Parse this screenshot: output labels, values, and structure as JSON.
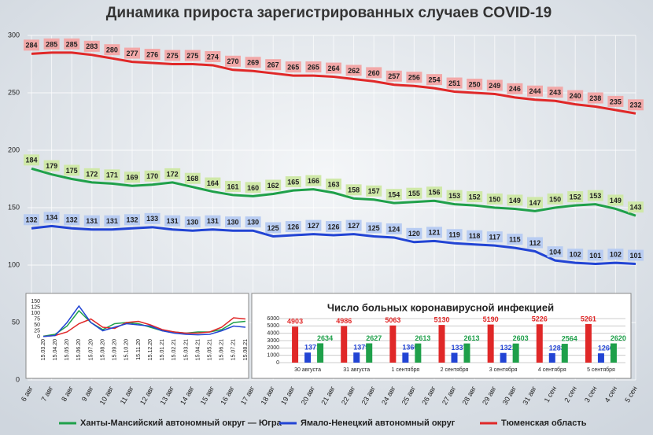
{
  "chart_data": [
    {
      "type": "line",
      "title": "Динамика прироста зарегистрированных случаев COVID-19",
      "categories": [
        "6 авг",
        "7 авг",
        "8 авг",
        "9 авг",
        "10 авг",
        "11 авг",
        "12 авг",
        "13 авг",
        "14 авг",
        "15 авг",
        "16 авг",
        "17 авг",
        "18 авг",
        "19 авг",
        "20 авг",
        "21 авг",
        "22 авг",
        "23 авг",
        "24 авг",
        "25 авг",
        "26 авг",
        "27 авг",
        "28 авг",
        "29 авг",
        "30 авг",
        "31 авг",
        "1 сен",
        "2 сен",
        "3 сен",
        "4 сен",
        "5 сен"
      ],
      "series": [
        {
          "name": "Ханты-Мансийский автономный округ — Югра",
          "color": "#1fa04a",
          "label_bg": "#cfe8a8",
          "values": [
            184,
            179,
            175,
            172,
            171,
            169,
            170,
            172,
            168,
            164,
            161,
            160,
            162,
            165,
            166,
            163,
            158,
            157,
            154,
            155,
            156,
            153,
            152,
            150,
            149,
            147,
            150,
            152,
            153,
            149,
            143
          ]
        },
        {
          "name": "Ямало-Ненецкий автономный округ",
          "color": "#2244d4",
          "label_bg": "#b8ccf2",
          "values": [
            132,
            134,
            132,
            131,
            131,
            132,
            133,
            131,
            130,
            131,
            130,
            130,
            125,
            126,
            127,
            126,
            127,
            125,
            124,
            120,
            121,
            119,
            118,
            117,
            115,
            112,
            104,
            102,
            101,
            102,
            101
          ]
        },
        {
          "name": "Тюменская область",
          "color": "#e02828",
          "label_bg": "#f2a8a8",
          "values": [
            284,
            285,
            285,
            283,
            280,
            277,
            276,
            275,
            275,
            274,
            270,
            269,
            267,
            265,
            265,
            264,
            262,
            260,
            257,
            256,
            254,
            251,
            250,
            249,
            246,
            244,
            243,
            240,
            238,
            235,
            232
          ]
        }
      ],
      "ylim": [
        0,
        300
      ],
      "yticks": [
        0,
        50,
        100,
        150,
        200,
        250,
        300
      ],
      "grid": true
    },
    {
      "type": "line",
      "categories": [
        "15.03.20",
        "15.04.20",
        "15.05.20",
        "15.06.20",
        "15.07.20",
        "15.08.20",
        "15.09.20",
        "15.10.20",
        "15.11.20",
        "15.12.20",
        "15.01.21",
        "15.02.21",
        "15.03.21",
        "15.04.21",
        "15.05.21",
        "15.06.21",
        "15.07.21",
        "15.08.21"
      ],
      "series": [
        {
          "color": "#1fa04a",
          "values": [
            2,
            10,
            45,
            110,
            60,
            30,
            55,
            60,
            55,
            40,
            25,
            20,
            15,
            20,
            20,
            30,
            60,
            65
          ]
        },
        {
          "color": "#e02828",
          "values": [
            1,
            5,
            20,
            55,
            75,
            40,
            35,
            60,
            65,
            50,
            30,
            20,
            15,
            15,
            20,
            40,
            80,
            75
          ]
        },
        {
          "color": "#2244d4",
          "values": [
            1,
            5,
            60,
            130,
            60,
            25,
            40,
            55,
            50,
            45,
            25,
            15,
            10,
            8,
            10,
            25,
            45,
            40
          ]
        }
      ],
      "ylim": [
        0,
        150
      ],
      "yticks": [
        0,
        25,
        50,
        75,
        100,
        125,
        150
      ],
      "grid": false
    },
    {
      "type": "bar",
      "title": "Число больных коронавирусной  инфекцией",
      "categories": [
        "30 августа",
        "31 августа",
        "1 сентября",
        "2 сентября",
        "3 сентября",
        "4 сентября",
        "5 сентября"
      ],
      "series": [
        {
          "color": "#e02828",
          "values": [
            4903,
            4986,
            5063,
            5130,
            5190,
            5226,
            5261
          ]
        },
        {
          "color": "#2244d4",
          "values": [
            1371,
            1379,
            1360,
            1337,
            1321,
            1283,
            1266
          ]
        },
        {
          "color": "#1fa04a",
          "values": [
            2634,
            2627,
            2613,
            2613,
            2603,
            2564,
            2620
          ]
        }
      ],
      "ylim": [
        0,
        6000
      ],
      "yticks": [
        0,
        1000,
        2000,
        3000,
        4000,
        5000,
        6000
      ],
      "grid": true
    }
  ]
}
